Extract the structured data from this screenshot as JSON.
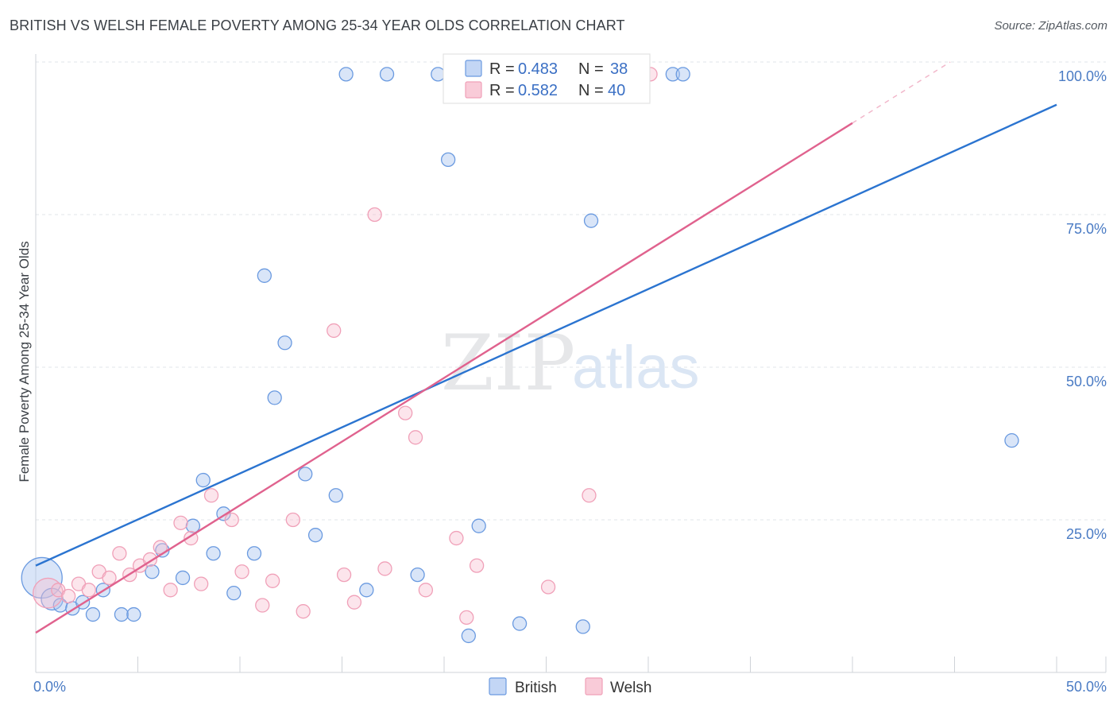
{
  "title": "BRITISH VS WELSH FEMALE POVERTY AMONG 25-34 YEAR OLDS CORRELATION CHART",
  "source": "Source: ZipAtlas.com",
  "watermark": {
    "zip": "ZIP",
    "atlas": "atlas"
  },
  "chart_data": {
    "type": "scatter",
    "title": "BRITISH VS WELSH FEMALE POVERTY AMONG 25-34 YEAR OLDS CORRELATION CHART",
    "xlabel": "",
    "ylabel": "Female Poverty Among 25-34 Year Olds",
    "xlim": [
      0,
      50
    ],
    "ylim": [
      0,
      100
    ],
    "x_tick_labels": [
      "0.0%",
      "50.0%"
    ],
    "y_tick_labels": [
      "25.0%",
      "50.0%",
      "75.0%",
      "100.0%"
    ],
    "y_ticks": [
      25,
      50,
      75,
      100
    ],
    "grid": true,
    "legend_position": "top-center",
    "colors": {
      "British": "#6a9ae0",
      "Welsh": "#f0a0b8",
      "british_line": "#2b74d0",
      "welsh_line": "#e0628e"
    },
    "stats": [
      {
        "series": "British",
        "r_label": "R =",
        "r": "0.483",
        "n_label": "N =",
        "n": "38"
      },
      {
        "series": "Welsh",
        "r_label": "R =",
        "r": "0.582",
        "n_label": "N =",
        "n": "40"
      }
    ],
    "series": [
      {
        "name": "British",
        "trend": {
          "x": [
            0,
            50
          ],
          "y": [
            17.5,
            93
          ]
        },
        "points": [
          [
            0.3,
            15.5,
            3
          ],
          [
            0.8,
            12.0,
            1.6
          ],
          [
            1.2,
            11.0,
            1
          ],
          [
            1.8,
            10.5,
            1
          ],
          [
            2.3,
            11.5,
            1
          ],
          [
            2.8,
            9.5,
            1
          ],
          [
            3.3,
            13.5,
            1
          ],
          [
            4.2,
            9.5,
            1
          ],
          [
            4.8,
            9.5,
            1
          ],
          [
            5.7,
            16.5,
            1
          ],
          [
            6.2,
            20.0,
            1
          ],
          [
            7.2,
            15.5,
            1
          ],
          [
            7.7,
            24.0,
            1
          ],
          [
            8.2,
            31.5,
            1
          ],
          [
            8.7,
            19.5,
            1
          ],
          [
            9.2,
            26.0,
            1
          ],
          [
            9.7,
            13.0,
            1
          ],
          [
            10.7,
            19.5,
            1
          ],
          [
            11.2,
            65.0,
            1
          ],
          [
            11.7,
            45.0,
            1
          ],
          [
            12.2,
            54.0,
            1
          ],
          [
            13.2,
            32.5,
            1
          ],
          [
            13.7,
            22.5,
            1
          ],
          [
            14.7,
            29.0,
            1
          ],
          [
            15.2,
            98.0,
            1
          ],
          [
            16.2,
            13.5,
            1
          ],
          [
            17.2,
            98.0,
            1
          ],
          [
            18.7,
            16.0,
            1
          ],
          [
            20.2,
            84.0,
            1
          ],
          [
            19.7,
            98.0,
            1
          ],
          [
            21.2,
            6.0,
            1
          ],
          [
            21.7,
            24.0,
            1
          ],
          [
            23.7,
            8.0,
            1
          ],
          [
            26.8,
            7.5,
            1
          ],
          [
            27.2,
            74.0,
            1
          ],
          [
            31.2,
            98.0,
            1
          ],
          [
            31.7,
            98.0,
            1
          ],
          [
            47.8,
            38.0,
            1
          ]
        ]
      },
      {
        "name": "Welsh",
        "trend": {
          "x": [
            0,
            40
          ],
          "y": [
            6.5,
            90
          ]
        },
        "points": [
          [
            0.6,
            13.0,
            2.2
          ],
          [
            1.1,
            13.5,
            1
          ],
          [
            1.6,
            12.5,
            1
          ],
          [
            2.1,
            14.5,
            1
          ],
          [
            2.6,
            13.5,
            1
          ],
          [
            3.1,
            16.5,
            1
          ],
          [
            3.6,
            15.5,
            1
          ],
          [
            4.1,
            19.5,
            1
          ],
          [
            4.6,
            16.0,
            1
          ],
          [
            5.1,
            17.5,
            1
          ],
          [
            5.6,
            18.5,
            1
          ],
          [
            6.1,
            20.5,
            1
          ],
          [
            6.6,
            13.5,
            1
          ],
          [
            7.1,
            24.5,
            1
          ],
          [
            7.6,
            22.0,
            1
          ],
          [
            8.1,
            14.5,
            1
          ],
          [
            8.6,
            29.0,
            1
          ],
          [
            9.6,
            25.0,
            1
          ],
          [
            10.1,
            16.5,
            1
          ],
          [
            11.1,
            11.0,
            1
          ],
          [
            11.6,
            15.0,
            1
          ],
          [
            12.6,
            25.0,
            1
          ],
          [
            13.1,
            10.0,
            1
          ],
          [
            14.6,
            56.0,
            1
          ],
          [
            15.1,
            16.0,
            1
          ],
          [
            15.6,
            11.5,
            1
          ],
          [
            16.6,
            75.0,
            1
          ],
          [
            17.1,
            17.0,
            1
          ],
          [
            18.1,
            42.5,
            1
          ],
          [
            18.6,
            38.5,
            1
          ],
          [
            19.1,
            13.5,
            1
          ],
          [
            20.6,
            22.0,
            1
          ],
          [
            21.1,
            9.0,
            1
          ],
          [
            21.6,
            17.5,
            1
          ],
          [
            23.1,
            98.0,
            1
          ],
          [
            23.6,
            98.0,
            1
          ],
          [
            24.1,
            98.0,
            1
          ],
          [
            25.1,
            14.0,
            1
          ],
          [
            27.1,
            29.0,
            1
          ],
          [
            30.1,
            98.0,
            1
          ]
        ]
      }
    ]
  }
}
